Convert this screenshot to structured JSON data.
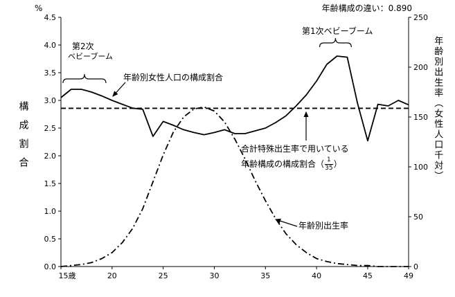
{
  "header": {
    "percent_label": "%",
    "title": "年齢構成の違い：0.890"
  },
  "axis_titles": {
    "left": "構成割合",
    "right": "年齢別出生率（女性人口千対）"
  },
  "annotations": {
    "boom2_line1": "第2次",
    "boom2_line2": "ベビーブーム",
    "boom1": "第1次ベビーブーム",
    "series_pop_label": "年齢別女性人口の構成割合",
    "tfr_line1": "合計特殊出生率で用いている",
    "tfr_line2_prefix": "年齢構成の構成割合（",
    "tfr_frac_num": "1",
    "tfr_frac_den": "35",
    "tfr_line2_suffix": "）",
    "birthrate_label": "年齢別出生率"
  },
  "chart_data": {
    "type": "line",
    "title": "年齢構成の違い：0.890",
    "x": [
      15,
      16,
      17,
      18,
      19,
      20,
      21,
      22,
      23,
      24,
      25,
      26,
      27,
      28,
      29,
      30,
      31,
      32,
      33,
      34,
      35,
      36,
      37,
      38,
      39,
      40,
      41,
      42,
      43,
      44,
      45,
      46,
      47,
      48,
      49
    ],
    "x_tick_values": [
      15,
      20,
      25,
      30,
      35,
      40,
      45,
      49
    ],
    "x_tick_labels": [
      "15歳",
      "20",
      "25",
      "30",
      "35",
      "40",
      "45",
      "49"
    ],
    "left_axis": {
      "label": "構成割合",
      "unit": "%",
      "range": [
        0,
        4.5
      ],
      "tick_values": [
        0,
        0.5,
        1,
        1.5,
        2,
        2.5,
        3,
        3.5,
        4,
        4.5
      ],
      "tick_labels": [
        "0.0",
        "0.5",
        "1.0",
        "1.5",
        "2.0",
        "2.5",
        "3.0",
        "3.5",
        "4.0",
        "4.5"
      ]
    },
    "right_axis": {
      "label": "年齢別出生率（女性人口千対）",
      "range": [
        0,
        250
      ],
      "tick_values": [
        0,
        50,
        100,
        150,
        200,
        250
      ],
      "tick_labels": [
        "0",
        "50",
        "100",
        "150",
        "200",
        "250"
      ]
    },
    "series": [
      {
        "name": "年齢別女性人口の構成割合",
        "axis": "left",
        "style": "solid",
        "values": [
          3.05,
          3.2,
          3.2,
          3.15,
          3.08,
          3.0,
          2.93,
          2.86,
          2.84,
          2.35,
          2.62,
          2.55,
          2.47,
          2.42,
          2.38,
          2.42,
          2.47,
          2.4,
          2.4,
          2.45,
          2.5,
          2.6,
          2.72,
          2.9,
          3.1,
          3.35,
          3.65,
          3.8,
          3.78,
          2.95,
          2.27,
          2.93,
          2.9,
          3.0,
          2.92
        ]
      },
      {
        "name": "合計特殊出生率で用いている年齢構成の構成割合（1/35）",
        "axis": "left",
        "style": "dashed",
        "constant_value": 2.857
      },
      {
        "name": "年齢別出生率",
        "axis": "right",
        "style": "dashdot",
        "values": [
          0,
          1,
          2,
          4,
          8,
          14,
          24,
          38,
          58,
          85,
          112,
          135,
          150,
          158,
          160,
          156,
          145,
          128,
          108,
          86,
          66,
          48,
          33,
          22,
          14,
          8,
          5,
          3,
          2,
          1,
          1,
          0,
          0,
          0,
          0
        ]
      }
    ],
    "annotation_braces": [
      {
        "text": "第2次ベビーブーム",
        "x_range": [
          15.2,
          19.4
        ]
      },
      {
        "text": "第1次ベビーブーム",
        "x_range": [
          40.3,
          43.4
        ]
      }
    ],
    "legend_position": "none",
    "grid": false
  }
}
